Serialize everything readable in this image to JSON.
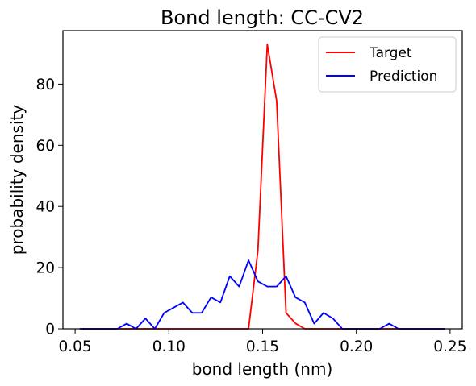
{
  "chart_data": {
    "type": "line",
    "title": "Bond length: CC-CV2",
    "xlabel": "bond length (nm)",
    "ylabel": "probability density",
    "xlim": [
      0.0435,
      0.2565
    ],
    "ylim": [
      0,
      97.5
    ],
    "xticks": [
      0.05,
      0.1,
      0.15,
      0.2,
      0.25
    ],
    "xtick_labels": [
      "0.05",
      "0.10",
      "0.15",
      "0.20",
      "0.25"
    ],
    "yticks": [
      0,
      20,
      40,
      60,
      80
    ],
    "ytick_labels": [
      "0",
      "20",
      "40",
      "60",
      "80"
    ],
    "grid": false,
    "legend": "top-right",
    "series": [
      {
        "name": "Target",
        "color": "#ff0000",
        "x": [
          0.0525,
          0.0575,
          0.0625,
          0.0675,
          0.0725,
          0.0775,
          0.0825,
          0.0875,
          0.0925,
          0.0975,
          0.1025,
          0.1075,
          0.1125,
          0.1175,
          0.1225,
          0.1275,
          0.1325,
          0.1375,
          0.1425,
          0.1475,
          0.1525,
          0.1575,
          0.1625,
          0.1675,
          0.1725,
          0.1775,
          0.1825,
          0.1875,
          0.1925,
          0.1975,
          0.2025,
          0.2075,
          0.2125,
          0.2175,
          0.2225,
          0.2275,
          0.2325,
          0.2375,
          0.2425,
          0.2475
        ],
        "y": [
          0,
          0,
          0,
          0,
          0,
          0,
          0,
          0,
          0,
          0,
          0,
          0,
          0,
          0,
          0,
          0,
          0,
          0,
          0,
          25.5,
          93.0,
          74.5,
          5.2,
          1.8,
          0,
          0,
          0,
          0,
          0,
          0,
          0,
          0,
          0,
          0,
          0,
          0,
          0,
          0,
          0,
          0
        ]
      },
      {
        "name": "Prediction",
        "color": "#0000ff",
        "x": [
          0.0525,
          0.0575,
          0.0625,
          0.0675,
          0.0725,
          0.0775,
          0.0825,
          0.0875,
          0.0925,
          0.0975,
          0.1025,
          0.1075,
          0.1125,
          0.1175,
          0.1225,
          0.1275,
          0.1325,
          0.1375,
          0.1425,
          0.1475,
          0.1525,
          0.1575,
          0.1625,
          0.1675,
          0.1725,
          0.1775,
          0.1825,
          0.1875,
          0.1925,
          0.1975,
          0.2025,
          0.2075,
          0.2125,
          0.2175,
          0.2225,
          0.2275,
          0.2325,
          0.2375,
          0.2425,
          0.2475
        ],
        "y": [
          0,
          0,
          0,
          0,
          0,
          1.7,
          0,
          3.4,
          0,
          5.2,
          6.9,
          8.6,
          5.2,
          5.2,
          10.3,
          8.6,
          17.2,
          13.8,
          22.4,
          15.5,
          13.8,
          13.8,
          17.2,
          10.3,
          8.6,
          1.7,
          5.2,
          3.4,
          0,
          0,
          0,
          0,
          0,
          1.7,
          0,
          0,
          0,
          0,
          0,
          0
        ]
      }
    ]
  }
}
